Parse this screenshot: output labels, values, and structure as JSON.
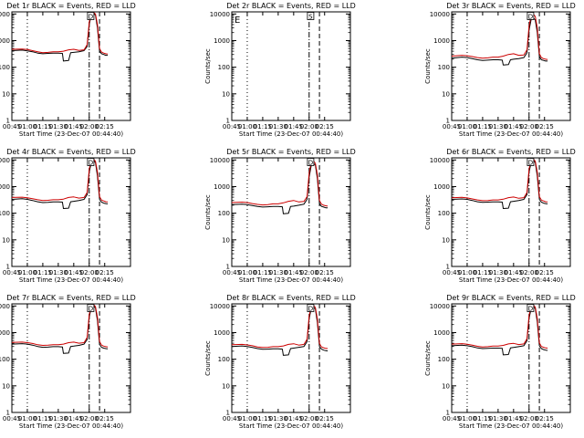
{
  "colors": {
    "events": "#000000",
    "lld": "#cc0000",
    "frame": "#000000",
    "background": "#ffffff"
  },
  "axis_defaults": {
    "xlabel": "Start Time (23-Dec-07 00:44:40)",
    "ylabel": "Counts/sec",
    "xlim_minutes": [
      -15,
      100
    ],
    "x_ticks": [
      {
        "value": -15,
        "label": "00:45"
      },
      {
        "value": 0,
        "label": "01:00"
      },
      {
        "value": 15,
        "label": "01:15"
      },
      {
        "value": 30,
        "label": "01:30"
      },
      {
        "value": 45,
        "label": "01:45"
      },
      {
        "value": 60,
        "label": "02:00"
      },
      {
        "value": 75,
        "label": "02:15"
      }
    ],
    "ylim": [
      1,
      12000
    ],
    "yscale": "log",
    "y_ticks": [
      {
        "value": 1,
        "label": "1"
      },
      {
        "value": 10,
        "label": "10"
      },
      {
        "value": 100,
        "label": "100"
      },
      {
        "value": 1000,
        "label": "1000"
      },
      {
        "value": 10000,
        "label": "10000"
      }
    ],
    "time_unit": "minutes after 01:00",
    "markers": [
      {
        "x": 0,
        "style": "dotted"
      },
      {
        "x": 60,
        "style": "dash-dot"
      },
      {
        "x": 70,
        "style": "dashed"
      }
    ]
  },
  "chart_data": [
    {
      "type": "line",
      "title": "Det 1r BLACK = Events, RED = LLD",
      "box_label": "D",
      "series": [
        {
          "name": "Events",
          "color": "#000000",
          "x": [
            -15,
            -5,
            0,
            5,
            10,
            15,
            20,
            25,
            30,
            34,
            35,
            40,
            42,
            45,
            50,
            55,
            58,
            60,
            62,
            64,
            66,
            68,
            70,
            72,
            74,
            76,
            78
          ],
          "y": [
            420,
            440,
            410,
            380,
            340,
            320,
            330,
            340,
            340,
            330,
            170,
            180,
            350,
            360,
            380,
            420,
            600,
            4000,
            9500,
            10500,
            9000,
            3000,
            400,
            320,
            300,
            280,
            280
          ]
        },
        {
          "name": "LLD",
          "color": "#cc0000",
          "x": [
            -15,
            -5,
            0,
            5,
            10,
            15,
            20,
            25,
            30,
            35,
            40,
            45,
            50,
            55,
            58,
            60,
            62,
            64,
            66,
            68,
            70,
            72,
            74,
            76,
            78
          ],
          "y": [
            470,
            480,
            460,
            420,
            380,
            350,
            360,
            380,
            380,
            400,
            450,
            470,
            430,
            450,
            700,
            5000,
            10500,
            11500,
            10000,
            4000,
            500,
            370,
            340,
            320,
            310
          ]
        }
      ]
    },
    {
      "type": "line",
      "title": "Det 2r BLACK = Events, RED = LLD",
      "box_label": "S",
      "corner_label": "E",
      "series": [
        {
          "name": "Events",
          "color": "#000000",
          "x": [],
          "y": []
        },
        {
          "name": "LLD",
          "color": "#cc0000",
          "x": [],
          "y": []
        }
      ]
    },
    {
      "type": "line",
      "title": "Det 3r BLACK = Events, RED = LLD",
      "box_label": "D",
      "series": [
        {
          "name": "Events",
          "color": "#000000",
          "x": [
            -15,
            -5,
            0,
            5,
            10,
            15,
            20,
            25,
            30,
            34,
            35,
            40,
            42,
            45,
            50,
            55,
            58,
            60,
            62,
            64,
            66,
            68,
            70,
            72,
            74,
            76,
            78
          ],
          "y": [
            220,
            240,
            230,
            210,
            190,
            180,
            185,
            190,
            190,
            185,
            120,
            125,
            190,
            200,
            210,
            230,
            350,
            2500,
            6000,
            7000,
            6000,
            2000,
            250,
            190,
            180,
            170,
            170
          ]
        },
        {
          "name": "LLD",
          "color": "#cc0000",
          "x": [
            -15,
            -5,
            0,
            5,
            10,
            15,
            20,
            25,
            30,
            35,
            40,
            45,
            50,
            55,
            58,
            60,
            62,
            64,
            66,
            68,
            70,
            72,
            74,
            76,
            78
          ],
          "y": [
            260,
            280,
            270,
            250,
            230,
            220,
            225,
            240,
            240,
            260,
            300,
            320,
            280,
            290,
            450,
            3500,
            8500,
            10000,
            8000,
            3000,
            320,
            230,
            210,
            200,
            195
          ]
        }
      ]
    },
    {
      "type": "line",
      "title": "Det 4r BLACK = Events, RED = LLD",
      "box_label": "D",
      "series": [
        {
          "name": "Events",
          "color": "#000000",
          "x": [
            -15,
            -5,
            0,
            5,
            10,
            15,
            20,
            25,
            30,
            34,
            35,
            40,
            42,
            45,
            50,
            55,
            58,
            60,
            62,
            64,
            66,
            68,
            70,
            72,
            74,
            76,
            78
          ],
          "y": [
            330,
            350,
            330,
            300,
            270,
            250,
            255,
            265,
            265,
            260,
            150,
            155,
            270,
            280,
            300,
            330,
            500,
            3500,
            8000,
            9500,
            8000,
            2500,
            330,
            260,
            240,
            230,
            225
          ]
        },
        {
          "name": "LLD",
          "color": "#cc0000",
          "x": [
            -15,
            -5,
            0,
            5,
            10,
            15,
            20,
            25,
            30,
            35,
            40,
            45,
            50,
            55,
            58,
            60,
            62,
            64,
            66,
            68,
            70,
            72,
            74,
            76,
            78
          ],
          "y": [
            390,
            400,
            380,
            350,
            320,
            300,
            305,
            320,
            320,
            340,
            390,
            410,
            370,
            390,
            600,
            4500,
            10000,
            11000,
            9000,
            3500,
            420,
            310,
            290,
            270,
            265
          ]
        }
      ]
    },
    {
      "type": "line",
      "title": "Det 5r BLACK = Events, RED = LLD",
      "box_label": "D",
      "series": [
        {
          "name": "Events",
          "color": "#000000",
          "x": [
            -15,
            -5,
            0,
            5,
            10,
            15,
            20,
            25,
            30,
            34,
            35,
            40,
            42,
            45,
            50,
            55,
            58,
            60,
            62,
            64,
            66,
            68,
            70,
            72,
            74,
            76,
            78
          ],
          "y": [
            210,
            220,
            210,
            195,
            180,
            170,
            175,
            180,
            180,
            175,
            95,
            100,
            180,
            185,
            200,
            220,
            330,
            2300,
            6000,
            7500,
            6500,
            2000,
            230,
            180,
            170,
            160,
            160
          ]
        },
        {
          "name": "LLD",
          "color": "#cc0000",
          "x": [
            -15,
            -5,
            0,
            5,
            10,
            15,
            20,
            25,
            30,
            35,
            40,
            45,
            50,
            55,
            58,
            60,
            62,
            64,
            66,
            68,
            70,
            72,
            74,
            76,
            78
          ],
          "y": [
            250,
            260,
            250,
            230,
            215,
            205,
            210,
            225,
            225,
            245,
            280,
            300,
            265,
            275,
            420,
            3200,
            8000,
            9500,
            7500,
            2800,
            300,
            220,
            200,
            190,
            185
          ]
        }
      ]
    },
    {
      "type": "line",
      "title": "Det 6r BLACK = Events, RED = LLD",
      "box_label": "D",
      "series": [
        {
          "name": "Events",
          "color": "#000000",
          "x": [
            -15,
            -5,
            0,
            5,
            10,
            15,
            20,
            25,
            30,
            34,
            35,
            40,
            42,
            45,
            50,
            55,
            58,
            60,
            62,
            64,
            66,
            68,
            70,
            72,
            74,
            76,
            78
          ],
          "y": [
            330,
            345,
            330,
            300,
            270,
            255,
            260,
            265,
            265,
            260,
            150,
            155,
            270,
            280,
            300,
            330,
            500,
            3500,
            8000,
            9500,
            8000,
            2500,
            330,
            260,
            240,
            230,
            225
          ]
        },
        {
          "name": "LLD",
          "color": "#cc0000",
          "x": [
            -15,
            -5,
            0,
            5,
            10,
            15,
            20,
            25,
            30,
            35,
            40,
            45,
            50,
            55,
            58,
            60,
            62,
            64,
            66,
            68,
            70,
            72,
            74,
            76,
            78
          ],
          "y": [
            380,
            395,
            375,
            345,
            315,
            295,
            300,
            315,
            315,
            335,
            385,
            405,
            365,
            385,
            600,
            4500,
            10000,
            11000,
            9000,
            3500,
            420,
            310,
            290,
            270,
            265
          ]
        }
      ]
    },
    {
      "type": "line",
      "title": "Det 7r BLACK = Events, RED = LLD",
      "box_label": "D",
      "series": [
        {
          "name": "Events",
          "color": "#000000",
          "x": [
            -15,
            -5,
            0,
            5,
            10,
            15,
            20,
            25,
            30,
            34,
            35,
            40,
            42,
            45,
            50,
            55,
            58,
            60,
            62,
            64,
            66,
            68,
            70,
            72,
            74,
            76,
            78
          ],
          "y": [
            370,
            385,
            370,
            340,
            300,
            280,
            285,
            295,
            295,
            290,
            165,
            170,
            300,
            310,
            330,
            370,
            550,
            3800,
            9000,
            10000,
            8500,
            2800,
            360,
            280,
            260,
            250,
            245
          ]
        },
        {
          "name": "LLD",
          "color": "#cc0000",
          "x": [
            -15,
            -5,
            0,
            5,
            10,
            15,
            20,
            25,
            30,
            35,
            40,
            45,
            50,
            55,
            58,
            60,
            62,
            64,
            66,
            68,
            70,
            72,
            74,
            76,
            78
          ],
          "y": [
            430,
            440,
            420,
            390,
            350,
            330,
            335,
            350,
            350,
            370,
            420,
            440,
            400,
            420,
            650,
            4800,
            10500,
            11500,
            9500,
            3800,
            460,
            340,
            310,
            295,
            290
          ]
        }
      ]
    },
    {
      "type": "line",
      "title": "Det 8r BLACK = Events, RED = LLD",
      "box_label": "D",
      "series": [
        {
          "name": "Events",
          "color": "#000000",
          "x": [
            -15,
            -5,
            0,
            5,
            10,
            15,
            20,
            25,
            30,
            34,
            35,
            40,
            42,
            45,
            50,
            55,
            58,
            60,
            62,
            64,
            66,
            68,
            70,
            72,
            74,
            76,
            78
          ],
          "y": [
            300,
            315,
            300,
            275,
            250,
            235,
            240,
            245,
            245,
            240,
            140,
            145,
            250,
            260,
            280,
            300,
            460,
            3300,
            8000,
            9000,
            7800,
            2400,
            300,
            240,
            220,
            210,
            205
          ]
        },
        {
          "name": "LLD",
          "color": "#cc0000",
          "x": [
            -15,
            -5,
            0,
            5,
            10,
            15,
            20,
            25,
            30,
            35,
            40,
            45,
            50,
            55,
            58,
            60,
            62,
            64,
            66,
            68,
            70,
            72,
            74,
            76,
            78
          ],
          "y": [
            350,
            360,
            345,
            320,
            290,
            275,
            280,
            295,
            295,
            315,
            360,
            380,
            340,
            360,
            560,
            4200,
            9800,
            10800,
            8800,
            3300,
            390,
            290,
            270,
            255,
            250
          ]
        }
      ]
    },
    {
      "type": "line",
      "title": "Det 9r BLACK = Events, RED = LLD",
      "box_label": "D",
      "series": [
        {
          "name": "Events",
          "color": "#000000",
          "x": [
            -15,
            -5,
            0,
            5,
            10,
            15,
            20,
            25,
            30,
            34,
            35,
            40,
            42,
            45,
            50,
            55,
            58,
            60,
            62,
            64,
            66,
            68,
            70,
            72,
            74,
            76,
            78
          ],
          "y": [
            320,
            335,
            320,
            295,
            265,
            250,
            255,
            260,
            260,
            255,
            145,
            150,
            265,
            275,
            295,
            320,
            490,
            3400,
            8000,
            9300,
            8000,
            2500,
            320,
            250,
            230,
            220,
            215
          ]
        },
        {
          "name": "LLD",
          "color": "#cc0000",
          "x": [
            -15,
            -5,
            0,
            5,
            10,
            15,
            20,
            25,
            30,
            35,
            40,
            45,
            50,
            55,
            58,
            60,
            62,
            64,
            66,
            68,
            70,
            72,
            74,
            76,
            78
          ],
          "y": [
            370,
            385,
            365,
            340,
            305,
            290,
            295,
            310,
            310,
            330,
            375,
            395,
            355,
            375,
            590,
            4400,
            10000,
            11000,
            9000,
            3400,
            410,
            300,
            280,
            265,
            260
          ]
        }
      ]
    }
  ]
}
